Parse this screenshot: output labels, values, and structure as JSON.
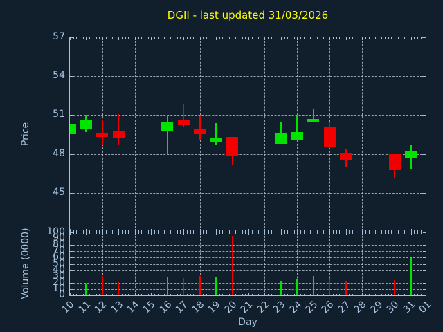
{
  "title": "DGII - last updated 31/03/2026",
  "colors": {
    "background": "#111e2c",
    "border": "#a6c0da",
    "text": "#a9c4de",
    "grid": "#b9c3cd",
    "title": "#ffff00",
    "up_candle": "#00e400",
    "down_candle": "#f20000"
  },
  "chart_data": {
    "type": "candlestick_with_volume",
    "title": "DGII - last updated 31/03/2026",
    "legend": "none",
    "grid": "on",
    "x_axis": {
      "label": "Day",
      "tick_labels": [
        "10",
        "11",
        "12",
        "13",
        "14",
        "15",
        "16",
        "17",
        "18",
        "19",
        "20",
        "21",
        "22",
        "23",
        "24",
        "25",
        "26",
        "27",
        "28",
        "29",
        "30",
        "31",
        "01"
      ],
      "grid_every": 2
    },
    "price_axis": {
      "label": "Price",
      "range": [
        42,
        57
      ],
      "tick_values": [
        45,
        48,
        51,
        54,
        57
      ]
    },
    "volume_axis": {
      "label": "Volume (0000)",
      "range": [
        0,
        100
      ],
      "tick_values": [
        0,
        10,
        20,
        30,
        40,
        50,
        60,
        70,
        80,
        90,
        100
      ]
    },
    "candles": [
      {
        "day": "10",
        "open": 49.5,
        "high": 50.35,
        "low": 49.5,
        "close": 50.35,
        "volume": null
      },
      {
        "day": "11",
        "open": 49.9,
        "high": 51.0,
        "low": 49.7,
        "close": 50.65,
        "volume": 19
      },
      {
        "day": "12",
        "open": 49.65,
        "high": 50.65,
        "low": 48.75,
        "close": 49.3,
        "volume": 31
      },
      {
        "day": "13",
        "open": 49.8,
        "high": 51.05,
        "low": 48.7,
        "close": 49.2,
        "volume": 21
      },
      {
        "day": "16",
        "open": 49.8,
        "high": 50.9,
        "low": 47.95,
        "close": 50.45,
        "volume": 29
      },
      {
        "day": "17",
        "open": 50.65,
        "high": 51.8,
        "low": 50.05,
        "close": 50.2,
        "volume": 28
      },
      {
        "day": "18",
        "open": 49.95,
        "high": 50.95,
        "low": 49.05,
        "close": 49.5,
        "volume": 31
      },
      {
        "day": "19",
        "open": 48.95,
        "high": 50.4,
        "low": 48.75,
        "close": 49.2,
        "volume": 30
      },
      {
        "day": "20",
        "open": 49.3,
        "high": 49.3,
        "low": 47.2,
        "close": 47.8,
        "volume": 95
      },
      {
        "day": "23",
        "open": 48.8,
        "high": 50.45,
        "low": 48.8,
        "close": 49.65,
        "volume": 23
      },
      {
        "day": "24",
        "open": 49.05,
        "high": 50.95,
        "low": 49.05,
        "close": 49.7,
        "volume": 26
      },
      {
        "day": "25",
        "open": 50.45,
        "high": 51.5,
        "low": 50.45,
        "close": 50.7,
        "volume": 31
      },
      {
        "day": "26",
        "open": 50.05,
        "high": 50.5,
        "low": 48.45,
        "close": 48.5,
        "volume": 24
      },
      {
        "day": "27",
        "open": 48.1,
        "high": 48.35,
        "low": 47.0,
        "close": 47.55,
        "volume": 23
      },
      {
        "day": "30",
        "open": 48.05,
        "high": 48.05,
        "low": 46.1,
        "close": 46.75,
        "volume": 24
      },
      {
        "day": "31",
        "open": 47.7,
        "high": 48.75,
        "low": 46.85,
        "close": 48.2,
        "volume": 59
      }
    ]
  }
}
